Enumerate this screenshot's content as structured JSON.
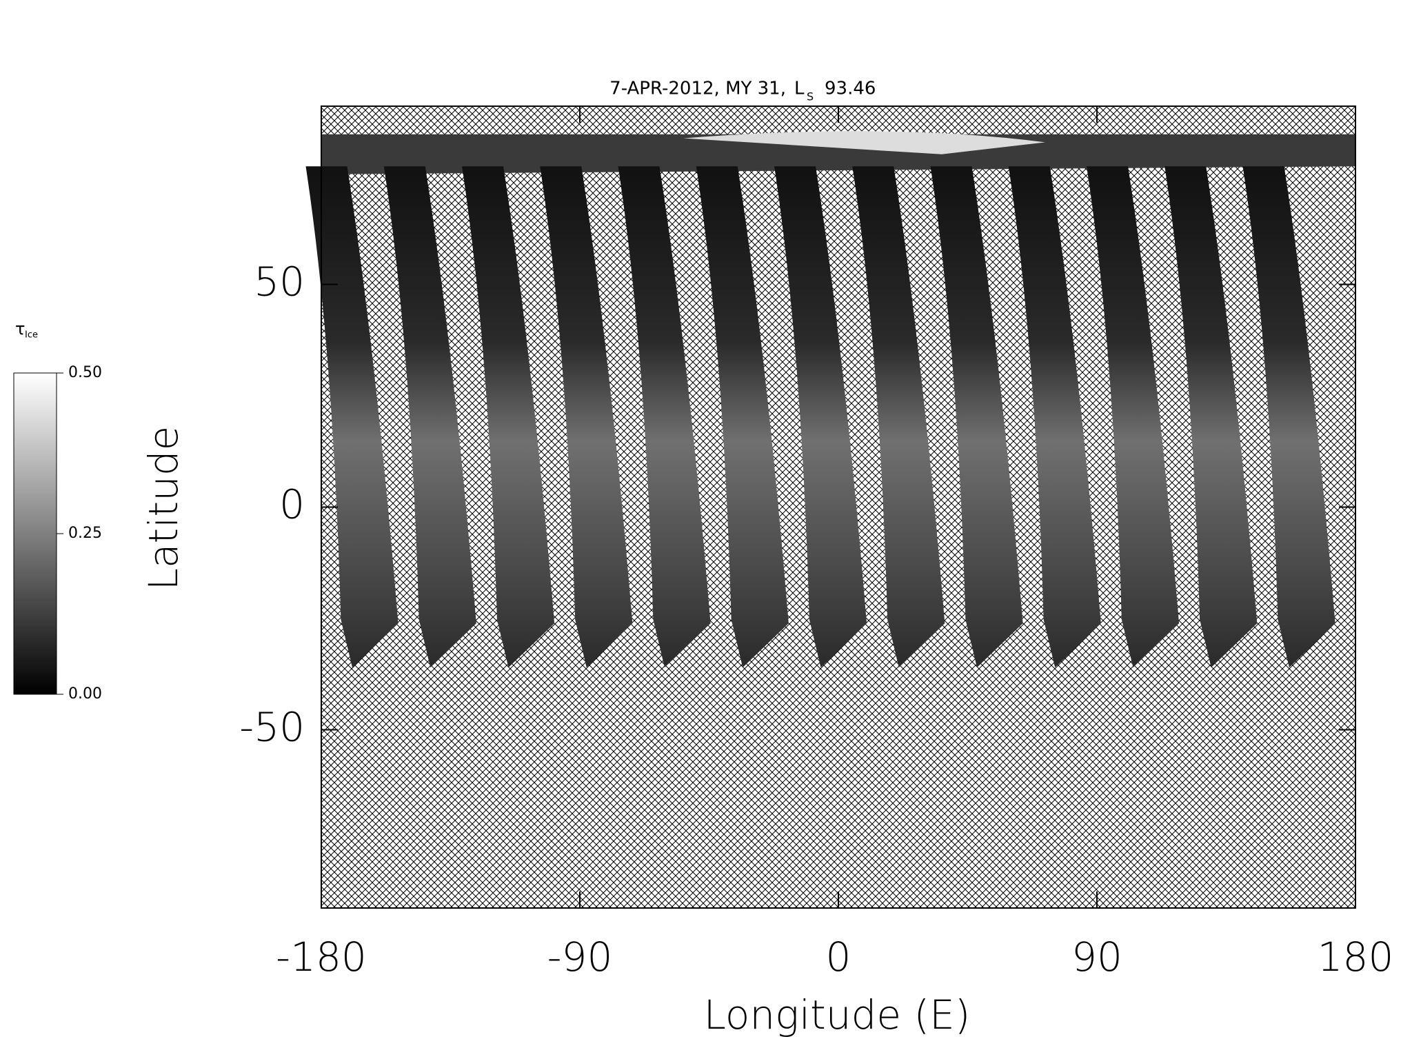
{
  "chart_data": {
    "type": "map",
    "title": "7-APR-2012, MY 31,",
    "ls_symbol": "L",
    "ls_subscript": "S",
    "ls_value": "93.46",
    "x_label": "Longitude (E)",
    "y_label": "Latitude",
    "xlim": [
      -180,
      180
    ],
    "ylim": [
      -90,
      90
    ],
    "xticks": [
      -180,
      -90,
      0,
      90,
      180
    ],
    "yticks": [
      -50,
      0,
      50
    ],
    "colorbar": {
      "label": "τ",
      "subscript": "Ice",
      "clim": [
        0,
        0.5
      ],
      "ticks": [
        {
          "value": 0,
          "label": "0.00"
        },
        {
          "value": 0.25,
          "label": "0.25"
        },
        {
          "value": 0.5,
          "label": "0.50"
        }
      ]
    }
  }
}
